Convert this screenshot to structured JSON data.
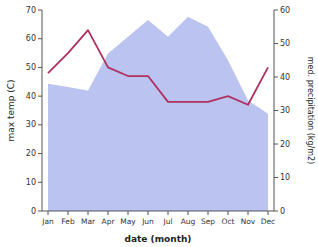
{
  "chart_data": {
    "type": "line",
    "x_label": "date (month)",
    "y_label": "max temp (C)",
    "y2_label": "med. precipitation (kg/m2)",
    "categories": [
      "Jan",
      "Feb",
      "Mar",
      "Apr",
      "May",
      "Jun",
      "Jul",
      "Aug",
      "Sep",
      "Oct",
      "Nov",
      "Dec"
    ],
    "series": [
      {
        "type": "area",
        "axis": "y2",
        "color": "#bbc4f0",
        "values": [
          38,
          37,
          36,
          47,
          52,
          57,
          52,
          58,
          55,
          45,
          33,
          29
        ]
      },
      {
        "type": "line",
        "color": "#b03060",
        "values": [
          48,
          55,
          63,
          50,
          47,
          47,
          38,
          38,
          38,
          40,
          37,
          50
        ]
      }
    ],
    "ylim": [
      0,
      70
    ],
    "yticks": [
      0,
      10,
      20,
      30,
      40,
      50,
      60,
      70
    ],
    "y2lim": [
      0,
      60
    ],
    "y2ticks": [
      0,
      10,
      20,
      30,
      40,
      50,
      60
    ]
  }
}
